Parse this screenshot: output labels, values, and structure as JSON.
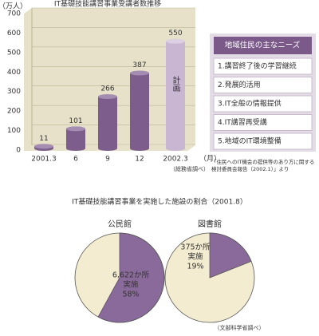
{
  "chart_data": [
    {
      "type": "bar",
      "title": "IT基礎技能講習事業受講者数推移",
      "y_label": "（万人）",
      "x_unit": "（月）",
      "categories": [
        "2001.3",
        "6",
        "9",
        "12",
        "2002.3"
      ],
      "values": [
        11,
        101,
        266,
        387,
        550
      ],
      "colors": [
        "#7d5d8c",
        "#7d5d8c",
        "#7d5d8c",
        "#7d5d8c",
        "#c9b6d3"
      ],
      "annotation": "計画",
      "source": "（総務省調べ）",
      "ylim": [
        0,
        700
      ],
      "yticks": [
        0,
        100,
        200,
        300,
        400,
        500,
        600,
        700
      ],
      "grid": true
    },
    {
      "type": "pie",
      "title": "公民館",
      "values": [
        58
      ],
      "value_labels": [
        "58%"
      ],
      "annotation": [
        "6,622か所",
        "実施"
      ],
      "color": "#8a6a9a",
      "background": "#f3ecd0"
    },
    {
      "type": "pie",
      "title": "図書館",
      "values": [
        19
      ],
      "value_labels": [
        "19%"
      ],
      "annotation": [
        "375か所",
        "実施"
      ],
      "color": "#8a6a9a",
      "background": "#f3ecd0"
    }
  ],
  "needs": {
    "title": "地域住民の主なニーズ",
    "items": [
      "1.講習終了後の学習継続",
      "2.発展的活用",
      "3.IT全般の情報提供",
      "4.IT講習再受講",
      "5.地域のIT環境整備"
    ],
    "note": [
      "「住民へのIT機会の提供等のあり方に関する",
      "検討委員会報告（2002.1）」より"
    ]
  },
  "pie_section": {
    "title": "IT基礎技能講習事業を実施した施設の割合（2001.8）",
    "source": "（文部科学省調べ）"
  }
}
